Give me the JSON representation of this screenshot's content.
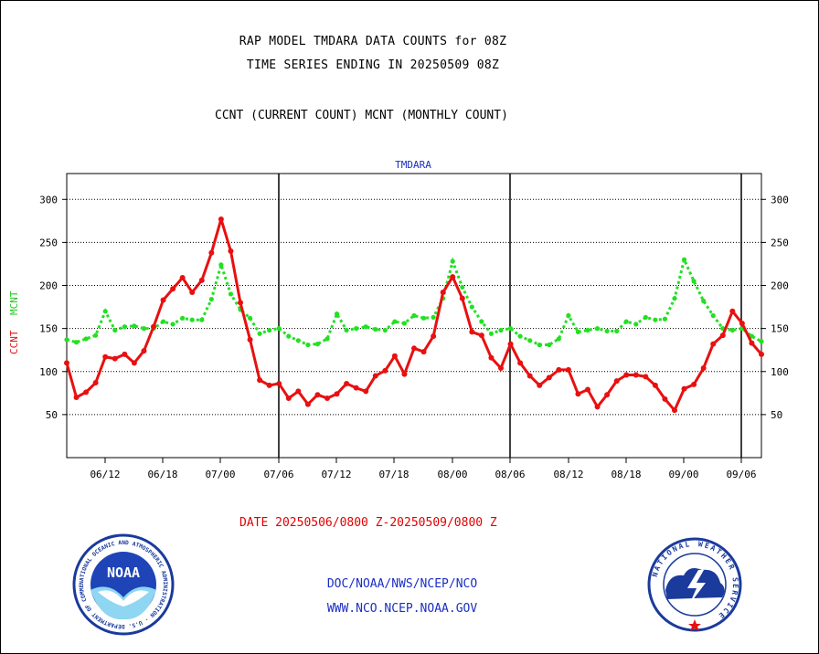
{
  "header": {
    "line1": "RAP MODEL TMDARA DATA COUNTS for 08Z",
    "line2": "TIME SERIES ENDING IN 20250509 08Z",
    "subtitle": "CCNT (CURRENT COUNT) MCNT (MONTHLY COUNT)"
  },
  "footer": {
    "date_range": "DATE 20250506/0800 Z-20250509/0800 Z",
    "credit_line1": "DOC/NOAA/NWS/NCEP/NCO",
    "credit_line2": "WWW.NCO.NCEP.NOAA.GOV"
  },
  "logos": {
    "noaa": "NOAA",
    "noaa_ring": "NATIONAL OCEANIC AND ATMOSPHERIC ADMINISTRATION · U.S. DEPARTMENT OF COMMERCE",
    "nws_ring": "NATIONAL WEATHER SERVICE"
  },
  "colors": {
    "ccnt": "#e81010",
    "mcnt": "#22e022",
    "title_blue": "#1a2fc4",
    "date_red": "#e00000"
  },
  "chart_data": {
    "type": "line",
    "title": "TMDARA",
    "ylabel_ccnt": "CCNT",
    "ylabel_mcnt": "MCNT",
    "ylim": [
      0,
      330
    ],
    "yticks": [
      50,
      100,
      150,
      200,
      250,
      300
    ],
    "xticks": [
      "06/12",
      "06/18",
      "07/00",
      "07/06",
      "07/12",
      "07/18",
      "08/00",
      "08/06",
      "08/12",
      "08/18",
      "09/00",
      "09/06"
    ],
    "x_start": "06/08",
    "x_end": "09/08",
    "day_boundaries": [
      "07/06",
      "08/06",
      "09/06"
    ],
    "grid": true,
    "series": [
      {
        "name": "CCNT",
        "style": "solid",
        "values": [
          110,
          70,
          76,
          87,
          117,
          115,
          120,
          110,
          124,
          152,
          183,
          196,
          209,
          192,
          206,
          238,
          277,
          240,
          180,
          137,
          90,
          84,
          86,
          69,
          77,
          62,
          73,
          69,
          74,
          86,
          81,
          77,
          95,
          101,
          118,
          97,
          127,
          123,
          141,
          192,
          210,
          185,
          146,
          142,
          116,
          104,
          132,
          110,
          95,
          84,
          93,
          102,
          102,
          74,
          79,
          59,
          73,
          89,
          96,
          96,
          94,
          84,
          68,
          55,
          80,
          85,
          104,
          132,
          142,
          170,
          156,
          133,
          120
        ]
      },
      {
        "name": "MCNT",
        "style": "dotted",
        "values": [
          137,
          134,
          138,
          142,
          170,
          148,
          152,
          153,
          150,
          150,
          158,
          155,
          162,
          160,
          160,
          184,
          224,
          190,
          172,
          162,
          144,
          148,
          150,
          141,
          136,
          131,
          132,
          138,
          167,
          148,
          150,
          152,
          149,
          148,
          158,
          156,
          165,
          162,
          163,
          185,
          228,
          198,
          175,
          158,
          144,
          148,
          150,
          141,
          136,
          131,
          131,
          138,
          165,
          146,
          148,
          150,
          147,
          147,
          158,
          155,
          163,
          160,
          161,
          185,
          230,
          205,
          182,
          165,
          150,
          148,
          150,
          141,
          135
        ]
      }
    ]
  }
}
